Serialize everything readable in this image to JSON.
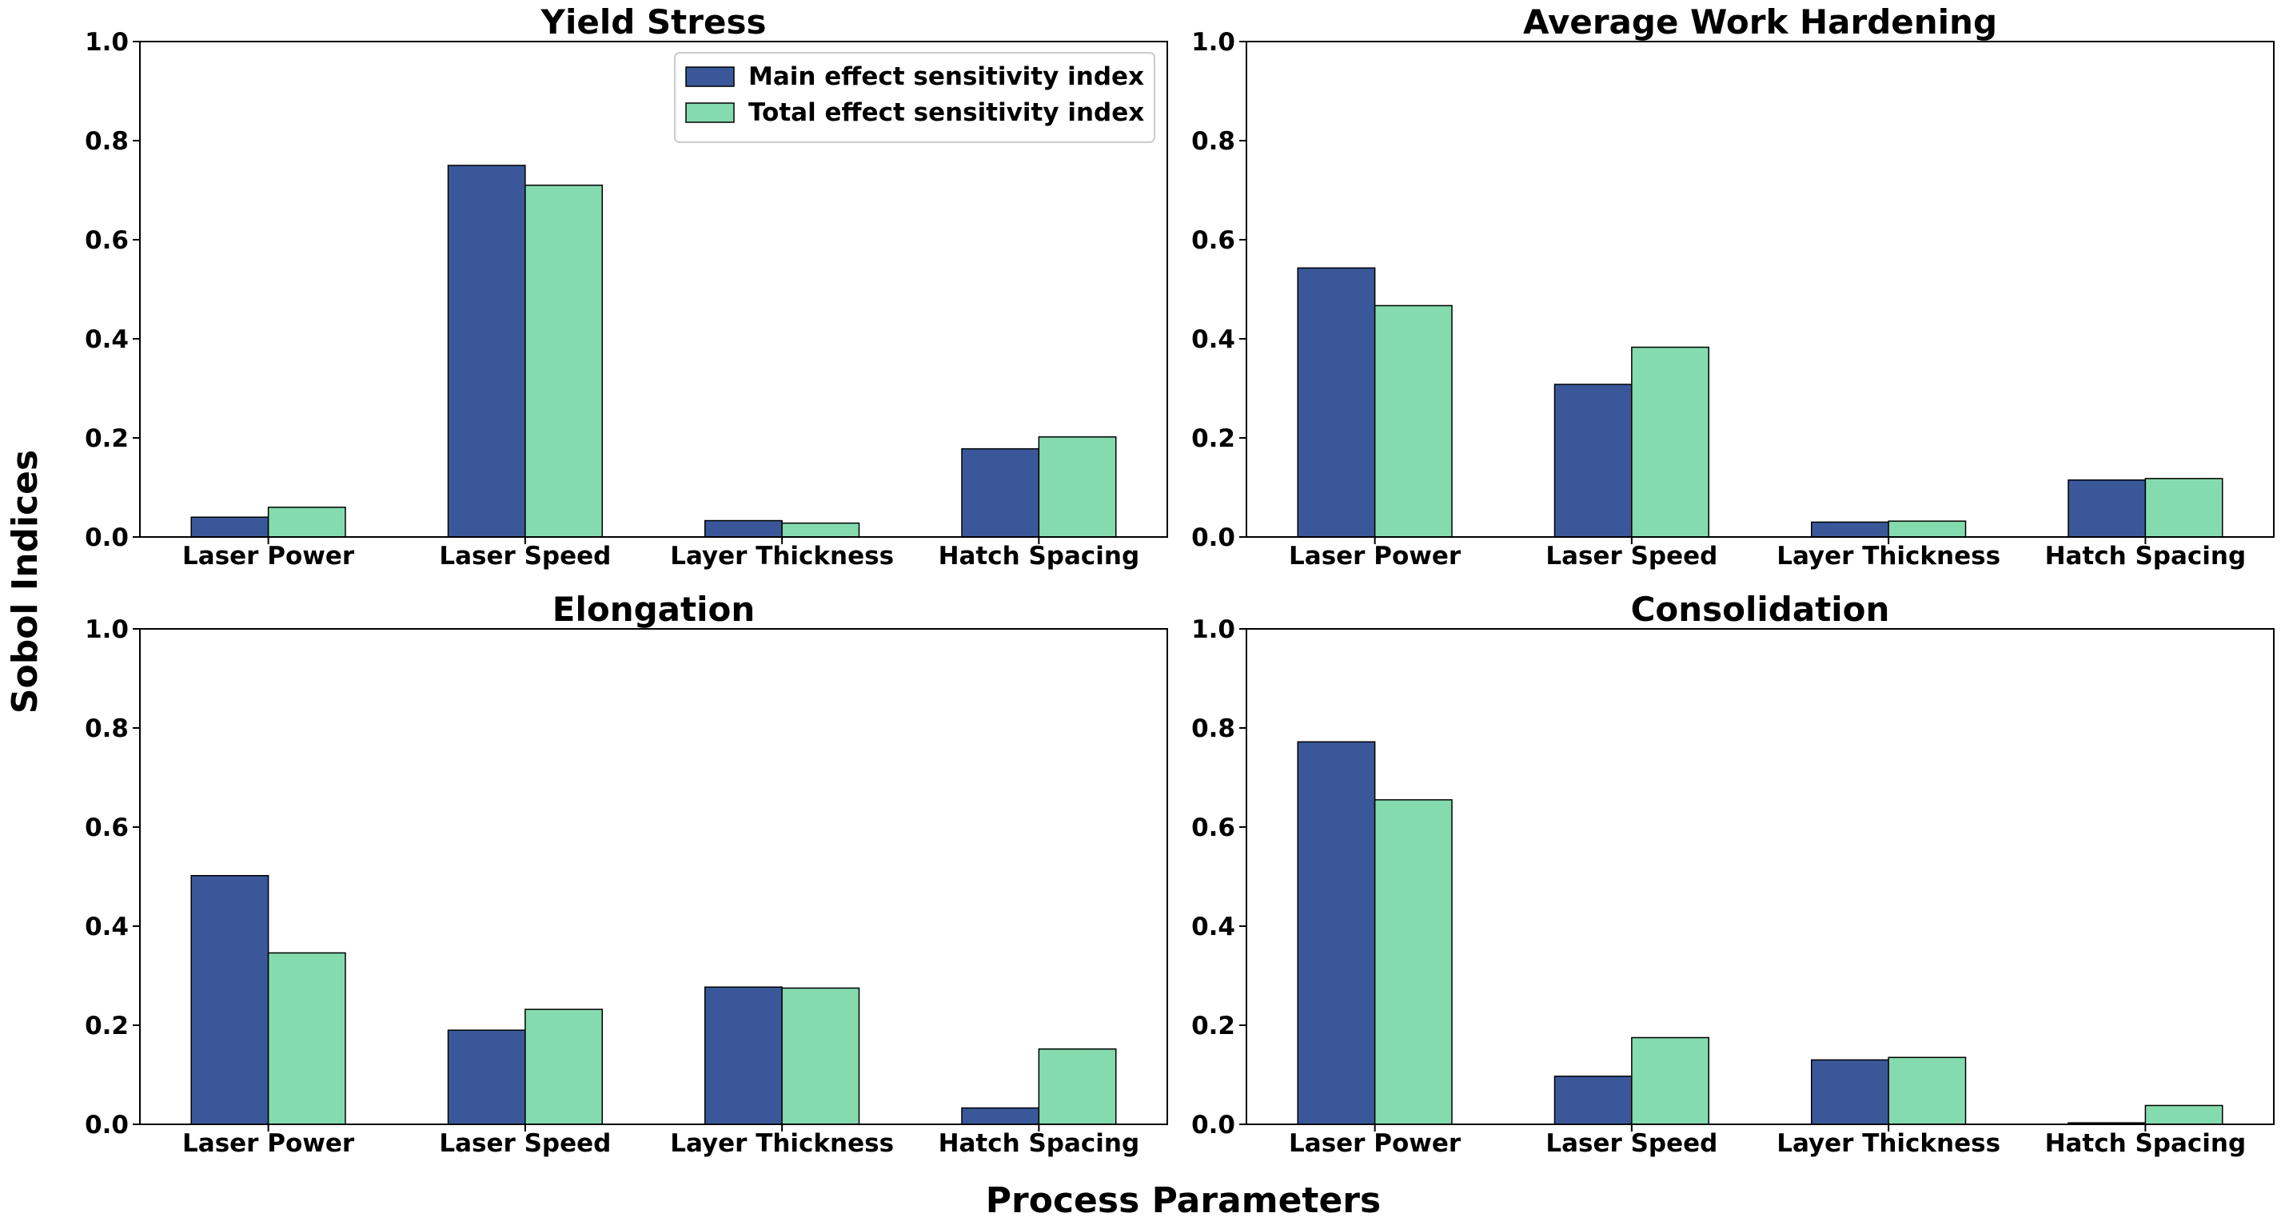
{
  "figure": {
    "ylabel": "Sobol Indices",
    "xlabel": "Process Parameters"
  },
  "colors": {
    "main": "#3a5899",
    "total": "#84dbae",
    "edge": "#000000"
  },
  "chart_data": [
    {
      "type": "bar",
      "title": "Yield Stress",
      "categories": [
        "Laser Power",
        "Laser Speed",
        "Layer Thickness",
        "Hatch Spacing"
      ],
      "series": [
        {
          "name": "Main effect sensitivity index",
          "values": [
            0.04,
            0.75,
            0.033,
            0.178
          ]
        },
        {
          "name": "Total effect sensitivity index",
          "values": [
            0.06,
            0.71,
            0.028,
            0.202
          ]
        }
      ],
      "ylim": [
        0,
        1.0
      ],
      "yticks": [
        "0.0",
        "0.2",
        "0.4",
        "0.6",
        "0.8",
        "1.0"
      ],
      "legend": "top-right"
    },
    {
      "type": "bar",
      "title": "Average Work Hardening",
      "categories": [
        "Laser Power",
        "Laser Speed",
        "Layer Thickness",
        "Hatch Spacing"
      ],
      "series": [
        {
          "name": "Main effect sensitivity index",
          "values": [
            0.543,
            0.308,
            0.03,
            0.115
          ]
        },
        {
          "name": "Total effect sensitivity index",
          "values": [
            0.467,
            0.383,
            0.032,
            0.118
          ]
        }
      ],
      "ylim": [
        0,
        1.0
      ],
      "yticks": [
        "0.0",
        "0.2",
        "0.4",
        "0.6",
        "0.8",
        "1.0"
      ]
    },
    {
      "type": "bar",
      "title": "Elongation",
      "categories": [
        "Laser Power",
        "Laser Speed",
        "Layer Thickness",
        "Hatch Spacing"
      ],
      "series": [
        {
          "name": "Main effect sensitivity index",
          "values": [
            0.502,
            0.19,
            0.277,
            0.033
          ]
        },
        {
          "name": "Total effect sensitivity index",
          "values": [
            0.346,
            0.232,
            0.275,
            0.152
          ]
        }
      ],
      "ylim": [
        0,
        1.0
      ],
      "yticks": [
        "0.0",
        "0.2",
        "0.4",
        "0.6",
        "0.8",
        "1.0"
      ]
    },
    {
      "type": "bar",
      "title": "Consolidation",
      "categories": [
        "Laser Power",
        "Laser Speed",
        "Layer Thickness",
        "Hatch Spacing"
      ],
      "series": [
        {
          "name": "Main effect sensitivity index",
          "values": [
            0.772,
            0.097,
            0.13,
            0.003
          ]
        },
        {
          "name": "Total effect sensitivity index",
          "values": [
            0.655,
            0.175,
            0.135,
            0.038
          ]
        }
      ],
      "ylim": [
        0,
        1.0
      ],
      "yticks": [
        "0.0",
        "0.2",
        "0.4",
        "0.6",
        "0.8",
        "1.0"
      ]
    }
  ]
}
